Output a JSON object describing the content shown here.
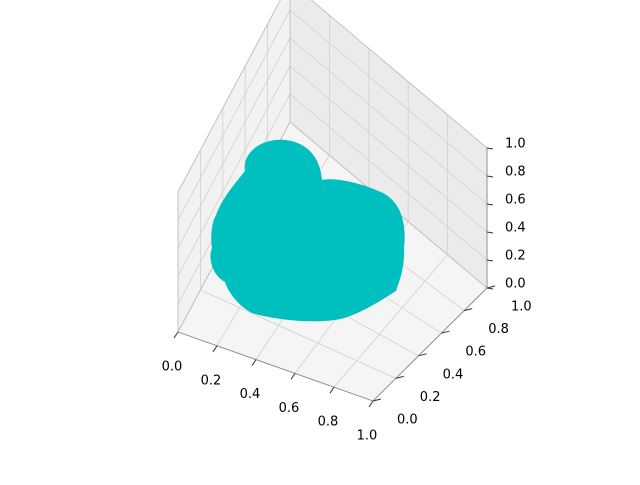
{
  "chart_data": {
    "type": "3d-voxel",
    "title": "",
    "xlabel": "",
    "ylabel": "",
    "zlabel": "",
    "xlim": [
      0,
      1
    ],
    "ylim": [
      0,
      1
    ],
    "zlim": [
      0,
      1
    ],
    "x_ticks": [
      "0.0",
      "0.2",
      "0.4",
      "0.6",
      "0.8",
      "1.0"
    ],
    "y_ticks": [
      "0.0",
      "0.2",
      "0.4",
      "0.6",
      "0.8",
      "1.0"
    ],
    "z_ticks": [
      "0.0",
      "0.2",
      "0.4",
      "0.6",
      "0.8",
      "1.0"
    ],
    "grid": true,
    "color": "#00bfbf",
    "pane_colors": {
      "left": "#f2f2f2",
      "back": "#ebebeb",
      "floor": "#f5f5f5"
    }
  }
}
